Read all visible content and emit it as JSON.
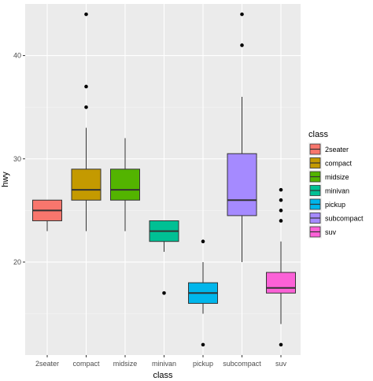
{
  "chart_data": {
    "type": "boxplot",
    "xlabel": "class",
    "ylabel": "hwy",
    "ylim": [
      11,
      45
    ],
    "yticks": [
      20,
      30,
      40
    ],
    "grid": true,
    "legend": {
      "title": "class",
      "placement": "right",
      "entries": [
        "2seater",
        "compact",
        "midsize",
        "minivan",
        "pickup",
        "subcompact",
        "suv"
      ]
    },
    "categories": [
      "2seater",
      "compact",
      "midsize",
      "minivan",
      "pickup",
      "subcompact",
      "suv"
    ],
    "colors": [
      "#F8766D",
      "#C49A00",
      "#53B400",
      "#00C094",
      "#00B6EB",
      "#A58AFF",
      "#FB61D7"
    ],
    "boxes": [
      {
        "category": "2seater",
        "whisker_low": 23,
        "q1": 24,
        "median": 25,
        "q3": 26,
        "whisker_high": 26,
        "outliers": []
      },
      {
        "category": "compact",
        "whisker_low": 23,
        "q1": 26,
        "median": 27,
        "q3": 29,
        "whisker_high": 33,
        "outliers": [
          35,
          37,
          44
        ]
      },
      {
        "category": "midsize",
        "whisker_low": 23,
        "q1": 26,
        "median": 27,
        "q3": 29,
        "whisker_high": 32,
        "outliers": []
      },
      {
        "category": "minivan",
        "whisker_low": 21,
        "q1": 22,
        "median": 23,
        "q3": 24,
        "whisker_high": 24,
        "outliers": [
          17
        ]
      },
      {
        "category": "pickup",
        "whisker_low": 15,
        "q1": 16,
        "median": 17,
        "q3": 18,
        "whisker_high": 20,
        "outliers": [
          12,
          22
        ]
      },
      {
        "category": "subcompact",
        "whisker_low": 20,
        "q1": 24.5,
        "median": 26,
        "q3": 30.5,
        "whisker_high": 36,
        "outliers": [
          41,
          44
        ]
      },
      {
        "category": "suv",
        "whisker_low": 14,
        "q1": 17,
        "median": 17.5,
        "q3": 19,
        "whisker_high": 22,
        "outliers": [
          12,
          24,
          25,
          26,
          27
        ]
      }
    ]
  }
}
